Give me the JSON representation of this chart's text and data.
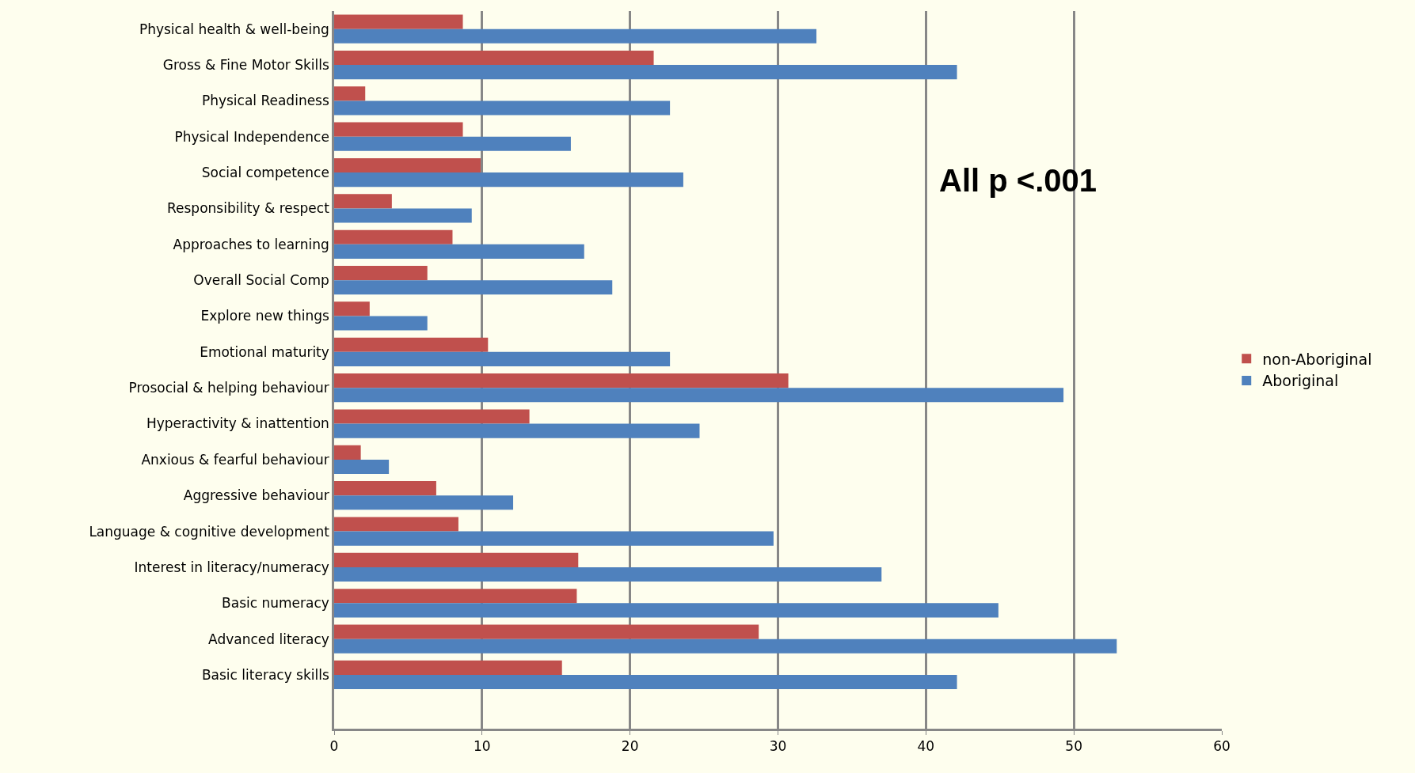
{
  "chart_data": {
    "type": "bar",
    "orientation": "horizontal",
    "categories": [
      "Physical health & well-being",
      "Gross & Fine Motor Skills",
      "Physical Readiness",
      "Physical Independence",
      "Social competence",
      "Responsibility & respect",
      "Approaches to learning",
      "Overall Social Comp",
      "Explore new things",
      "Emotional maturity",
      "Prosocial & helping behaviour",
      "Hyperactivity & inattention",
      "Anxious & fearful behaviour",
      "Aggressive behaviour",
      "Language & cognitive development",
      "Interest in literacy/numeracy",
      "Basic numeracy",
      "Advanced literacy",
      "Basic literacy skills",
      null
    ],
    "series": [
      {
        "name": "non-Aboriginal",
        "color": "#c0504d",
        "values": [
          8.7,
          21.6,
          2.1,
          8.7,
          9.9,
          3.9,
          8.0,
          6.3,
          2.4,
          10.4,
          30.7,
          13.2,
          1.8,
          6.9,
          8.4,
          16.5,
          16.4,
          28.7,
          15.4,
          null
        ]
      },
      {
        "name": "Aboriginal",
        "color": "#4f81bd",
        "values": [
          32.6,
          42.1,
          22.7,
          16.0,
          23.6,
          9.3,
          16.9,
          18.8,
          6.3,
          22.7,
          49.3,
          24.7,
          3.7,
          12.1,
          29.7,
          37.0,
          44.9,
          52.9,
          42.1,
          null
        ]
      }
    ],
    "xlim": [
      0,
      60
    ],
    "xticks": [
      0,
      10,
      20,
      30,
      40,
      50,
      60
    ],
    "grid": "x",
    "legend": "right",
    "annotations": [
      "All p <.001"
    ]
  }
}
